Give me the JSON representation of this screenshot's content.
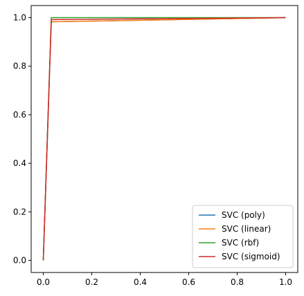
{
  "chart_data": {
    "type": "line",
    "title": "",
    "xlabel": "",
    "ylabel": "",
    "xlim": [
      -0.05,
      1.05
    ],
    "ylim": [
      -0.05,
      1.05
    ],
    "grid": false,
    "legend_position": "lower-right",
    "xticks": [
      0.0,
      0.2,
      0.4,
      0.6,
      0.8,
      1.0
    ],
    "yticks": [
      0.0,
      0.2,
      0.4,
      0.6,
      0.8,
      1.0
    ],
    "xtick_labels": [
      "0.0",
      "0.2",
      "0.4",
      "0.6",
      "0.8",
      "1.0"
    ],
    "ytick_labels": [
      "0.0",
      "0.2",
      "0.4",
      "0.6",
      "0.8",
      "1.0"
    ],
    "series": [
      {
        "name": "SVC (poly)",
        "color": "#1f77b4",
        "x": [
          0.0,
          0.033,
          1.0
        ],
        "y": [
          0.0,
          0.983,
          1.0
        ]
      },
      {
        "name": "SVC (linear)",
        "color": "#ff7f0e",
        "x": [
          0.0,
          0.033,
          1.0
        ],
        "y": [
          0.0,
          0.983,
          1.0
        ]
      },
      {
        "name": "SVC (rbf)",
        "color": "#2ca02c",
        "x": [
          0.0,
          0.033,
          1.0
        ],
        "y": [
          0.0,
          1.0,
          1.0
        ]
      },
      {
        "name": "SVC (sigmoid)",
        "color": "#d62728",
        "x": [
          0.0,
          0.033,
          1.0
        ],
        "y": [
          0.0,
          0.992,
          1.0
        ]
      }
    ]
  }
}
